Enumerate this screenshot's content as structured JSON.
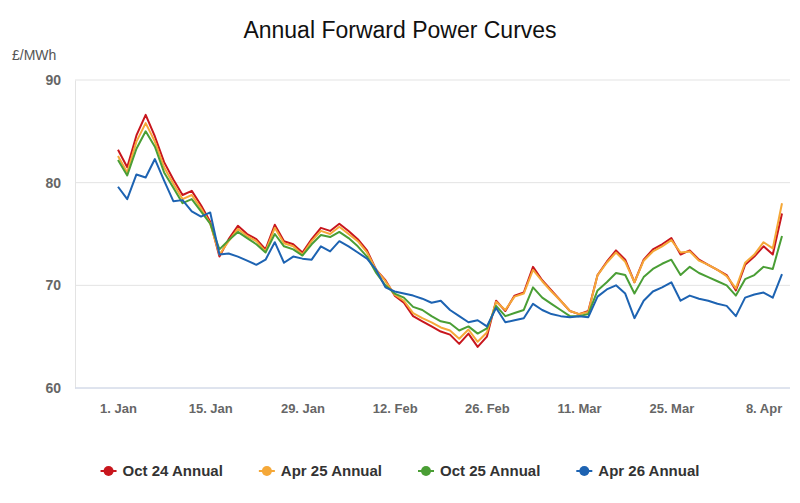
{
  "chart_data": {
    "type": "line",
    "title": "Annual Forward Power Curves",
    "y_label": "£/MWh",
    "categories": [
      "1. Jan",
      null,
      null,
      null,
      null,
      null,
      null,
      null,
      null,
      null,
      "15. Jan",
      null,
      null,
      null,
      null,
      null,
      null,
      null,
      null,
      null,
      "29. Jan",
      null,
      null,
      null,
      null,
      null,
      null,
      null,
      null,
      null,
      "12. Feb",
      null,
      null,
      null,
      null,
      null,
      null,
      null,
      null,
      null,
      "26. Feb",
      null,
      null,
      null,
      null,
      null,
      null,
      null,
      null,
      null,
      "11. Mar",
      null,
      null,
      null,
      null,
      null,
      null,
      null,
      null,
      null,
      "25. Mar",
      null,
      null,
      null,
      null,
      null,
      null,
      null,
      null,
      null,
      "8. Apr",
      null,
      null
    ],
    "series": [
      {
        "name": "Oct 24 Annual",
        "color": "#c8161d",
        "values": [
          83.2,
          81.5,
          84.6,
          86.6,
          84.5,
          82.0,
          80.3,
          78.8,
          79.2,
          77.8,
          76.2,
          72.8,
          74.5,
          75.8,
          75.0,
          74.5,
          73.5,
          75.9,
          74.3,
          74.0,
          73.2,
          74.5,
          75.6,
          75.3,
          76.0,
          75.3,
          74.5,
          73.4,
          71.5,
          70.5,
          69.0,
          68.3,
          67.0,
          66.5,
          66.0,
          65.5,
          65.2,
          64.3,
          65.3,
          64.0,
          65.0,
          68.5,
          67.5,
          69.0,
          69.3,
          71.8,
          70.5,
          69.5,
          68.5,
          67.5,
          67.2,
          67.5,
          71.0,
          72.3,
          73.4,
          72.5,
          70.3,
          72.5,
          73.5,
          74.0,
          74.6,
          73.0,
          73.4,
          72.5,
          72.0,
          71.5,
          71.0,
          69.5,
          72.0,
          72.8,
          73.8,
          73.0,
          77.0
        ]
      },
      {
        "name": "Apr 25 Annual",
        "color": "#f5a838",
        "values": [
          82.6,
          81.0,
          84.0,
          85.8,
          84.0,
          81.5,
          79.9,
          78.4,
          78.8,
          77.5,
          76.0,
          73.0,
          74.3,
          75.5,
          74.8,
          74.3,
          73.3,
          75.6,
          74.1,
          73.8,
          73.0,
          74.3,
          75.3,
          75.0,
          75.7,
          75.0,
          74.3,
          73.2,
          71.5,
          70.4,
          69.1,
          68.5,
          67.3,
          66.8,
          66.4,
          65.9,
          65.6,
          64.8,
          65.7,
          64.5,
          65.4,
          68.4,
          67.6,
          68.9,
          69.2,
          71.5,
          70.4,
          69.4,
          68.5,
          67.5,
          67.2,
          67.4,
          71.0,
          72.2,
          73.2,
          72.3,
          70.3,
          72.4,
          73.3,
          73.8,
          74.4,
          73.2,
          73.3,
          72.4,
          72.0,
          71.5,
          70.9,
          69.7,
          72.2,
          73.0,
          74.2,
          73.6,
          78.0
        ]
      },
      {
        "name": "Oct 25 Annual",
        "color": "#4a9e35",
        "values": [
          82.2,
          80.7,
          83.3,
          85.0,
          83.5,
          81.0,
          79.5,
          78.0,
          78.4,
          77.2,
          76.0,
          73.5,
          74.4,
          75.2,
          74.6,
          74.0,
          73.2,
          75.0,
          73.8,
          73.5,
          72.9,
          74.0,
          74.9,
          74.7,
          75.2,
          74.6,
          73.8,
          72.8,
          71.2,
          70.0,
          69.2,
          68.8,
          67.9,
          67.6,
          67.0,
          66.5,
          66.3,
          65.6,
          66.0,
          65.3,
          65.8,
          68.0,
          67.0,
          67.3,
          67.6,
          69.8,
          68.8,
          68.2,
          67.6,
          67.0,
          67.0,
          67.2,
          69.5,
          70.3,
          71.2,
          71.0,
          69.2,
          70.8,
          71.6,
          72.1,
          72.5,
          71.0,
          71.8,
          71.2,
          70.8,
          70.4,
          70.0,
          69.0,
          70.6,
          71.0,
          71.8,
          71.6,
          74.8
        ]
      },
      {
        "name": "Apr 26 Annual",
        "color": "#1d63b2",
        "values": [
          79.6,
          78.4,
          80.8,
          80.5,
          82.3,
          80.2,
          78.2,
          78.3,
          77.2,
          76.7,
          77.1,
          73.0,
          73.1,
          72.8,
          72.4,
          72.0,
          72.5,
          74.2,
          72.2,
          72.8,
          72.6,
          72.5,
          73.8,
          73.3,
          74.3,
          73.8,
          73.2,
          72.6,
          71.5,
          69.8,
          69.4,
          69.2,
          69.0,
          68.7,
          68.3,
          68.5,
          67.6,
          67.0,
          66.4,
          66.6,
          66.0,
          67.8,
          66.4,
          66.6,
          66.8,
          68.2,
          67.6,
          67.2,
          67.0,
          66.9,
          67.0,
          66.9,
          68.9,
          69.6,
          70.0,
          69.2,
          66.8,
          68.5,
          69.4,
          69.8,
          70.3,
          68.5,
          69.0,
          68.7,
          68.5,
          68.2,
          68.0,
          67.0,
          68.8,
          69.1,
          69.3,
          68.8,
          71.1
        ]
      }
    ],
    "ylim": [
      60,
      90
    ],
    "yticks": [
      60,
      70,
      80,
      90
    ],
    "grid": true,
    "legend": "bottom"
  }
}
